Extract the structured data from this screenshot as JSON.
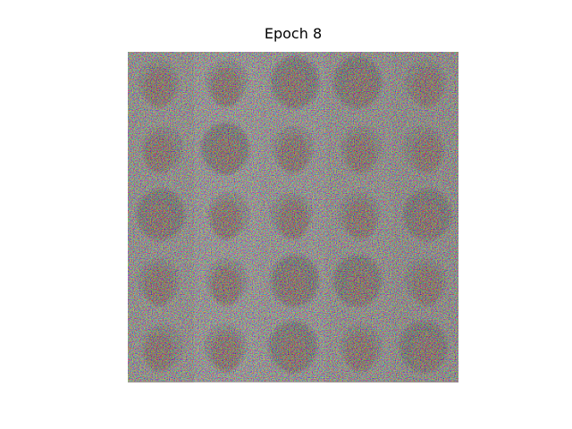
{
  "title": "Epoch 8"
}
